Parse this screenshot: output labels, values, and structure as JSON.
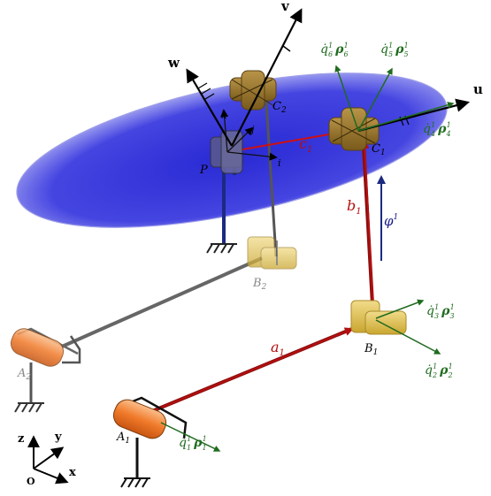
{
  "axes": {
    "u": "u",
    "v": "v",
    "w": "w",
    "x": "x",
    "y": "y",
    "z": "z",
    "o": "O"
  },
  "platform_frame": {
    "i": "i",
    "j": "j",
    "k": "k"
  },
  "points": {
    "P": "P",
    "C1": "C",
    "C1_sub": "1",
    "C2": "C",
    "C2_sub": "2",
    "B1": "B",
    "B1_sub": "1",
    "B2": "B",
    "B2_sub": "2",
    "A1": "A",
    "A1_sub": "1",
    "A2": "A",
    "A2_sub": "2"
  },
  "links": {
    "a1": "a",
    "a1_sub": "1",
    "b1": "b",
    "b1_sub": "1",
    "c1": "c",
    "c1_sub": "1",
    "phi": "φ",
    "phi_sup": "1"
  },
  "joint_rates": [
    {
      "id": "q1",
      "dot": "q̇",
      "sub": "1",
      "sup": "1",
      "rho": "ρ",
      "rho_sub": "1",
      "rho_sup": "1"
    },
    {
      "id": "q2",
      "dot": "q̇",
      "sub": "2",
      "sup": "1",
      "rho": "ρ",
      "rho_sub": "2",
      "rho_sup": "1"
    },
    {
      "id": "q3",
      "dot": "q̇",
      "sub": "3",
      "sup": "1",
      "rho": "ρ",
      "rho_sub": "3",
      "rho_sup": "1"
    },
    {
      "id": "q4",
      "dot": "q̇",
      "sub": "4",
      "sup": "1",
      "rho": "ρ",
      "rho_sub": "4",
      "rho_sup": "1"
    },
    {
      "id": "q5",
      "dot": "q̇",
      "sub": "5",
      "sup": "1",
      "rho": "ρ",
      "rho_sub": "5",
      "rho_sup": "1"
    },
    {
      "id": "q6",
      "dot": "q̇",
      "sub": "6",
      "sup": "1",
      "rho": "ρ",
      "rho_sub": "6",
      "rho_sup": "1"
    }
  ],
  "colors": {
    "platform": "#3a3ad6",
    "leg1": "#8b0d0d",
    "leg2": "#6e6e6e",
    "joint_gold": "#d4b23a",
    "joint_brown": "#8c6a22",
    "actuator_orange": "#f08a3a",
    "screw_green": "#1f6b1f",
    "post_navy": "#1b2a80"
  }
}
